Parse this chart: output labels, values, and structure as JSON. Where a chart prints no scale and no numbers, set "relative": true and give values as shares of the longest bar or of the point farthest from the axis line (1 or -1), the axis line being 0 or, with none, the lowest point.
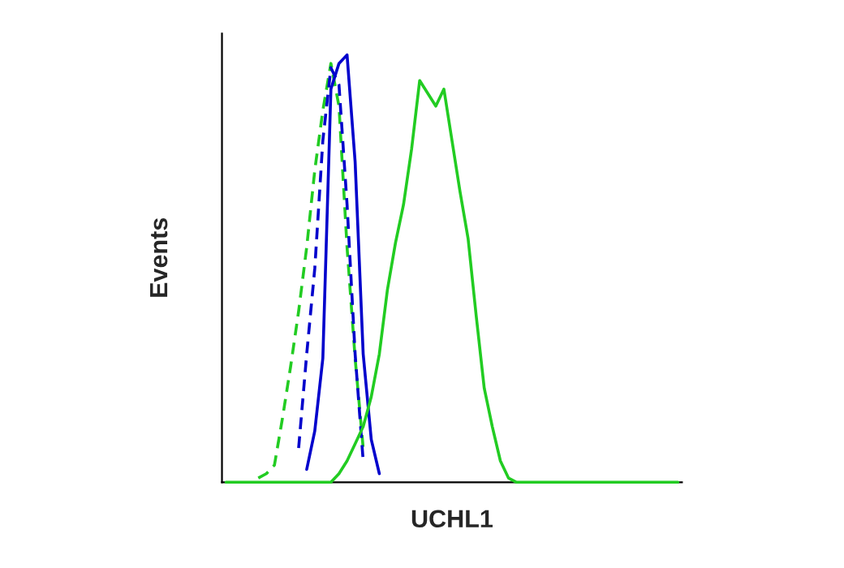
{
  "chart_data": {
    "type": "line",
    "relative": true,
    "xlabel": "UCHL1",
    "ylabel": "Events",
    "tick_labels": false,
    "categories": [
      null,
      null,
      null,
      null,
      null,
      null,
      null,
      null,
      null,
      null,
      null,
      null,
      null,
      null,
      null,
      null,
      null,
      null,
      null,
      null,
      null,
      null,
      null,
      null,
      null,
      null,
      null,
      null,
      null,
      null,
      null,
      null,
      null,
      null,
      null,
      null,
      null,
      null,
      null,
      null,
      null,
      null,
      null,
      null,
      null,
      null,
      null,
      null,
      null,
      null,
      null,
      null,
      null,
      null,
      null,
      null,
      null
    ],
    "series": [
      {
        "color": "#22cc22",
        "line_style": "dashed",
        "values": [
          null,
          null,
          null,
          null,
          0.01,
          0.02,
          0.04,
          0.15,
          0.27,
          0.4,
          0.55,
          0.73,
          0.87,
          0.98,
          0.88,
          0.55,
          0.29,
          0.08,
          null,
          null,
          null,
          null,
          null,
          null,
          null,
          null,
          null,
          null,
          null,
          null,
          null,
          null,
          null,
          null,
          null,
          null,
          null,
          null,
          null,
          null,
          null,
          null,
          null,
          null,
          null,
          null,
          null,
          null,
          null,
          null,
          null,
          null,
          null,
          null,
          null,
          null,
          null
        ]
      },
      {
        "color": "#0000cc",
        "line_style": "dashed",
        "values": [
          null,
          null,
          null,
          null,
          null,
          null,
          null,
          null,
          null,
          0.08,
          0.3,
          0.5,
          0.8,
          0.97,
          0.93,
          0.65,
          0.3,
          0.05,
          null,
          null,
          null,
          null,
          null,
          null,
          null,
          null,
          null,
          null,
          null,
          null,
          null,
          null,
          null,
          null,
          null,
          null,
          null,
          null,
          null,
          null,
          null,
          null,
          null,
          null,
          null,
          null,
          null,
          null,
          null,
          null,
          null,
          null,
          null,
          null,
          null,
          null,
          null
        ]
      },
      {
        "color": "#0000cc",
        "line_style": "solid",
        "values": [
          null,
          null,
          null,
          null,
          null,
          null,
          null,
          null,
          null,
          null,
          0.03,
          0.12,
          0.29,
          0.92,
          0.98,
          1,
          0.75,
          0.3,
          0.1,
          0.02,
          null,
          null,
          null,
          null,
          null,
          null,
          null,
          null,
          null,
          null,
          null,
          null,
          null,
          null,
          null,
          null,
          null,
          null,
          null,
          null,
          null,
          null,
          null,
          null,
          null,
          null,
          null,
          null,
          null,
          null,
          null,
          null,
          null,
          null,
          null,
          null,
          null
        ]
      },
      {
        "color": "#22cc22",
        "line_style": "solid",
        "values": [
          0,
          0,
          0,
          0,
          0,
          0,
          0,
          0,
          0,
          0,
          0,
          0,
          0,
          0,
          0.02,
          0.05,
          0.09,
          0.13,
          0.2,
          0.3,
          0.45,
          0.56,
          0.65,
          0.78,
          0.94,
          0.91,
          0.88,
          0.92,
          0.8,
          0.68,
          0.57,
          0.39,
          0.22,
          0.13,
          0.05,
          0.01,
          0,
          0,
          0,
          0,
          0,
          0,
          0,
          0,
          0,
          0,
          0,
          0,
          0,
          0,
          0,
          0,
          0,
          0,
          0,
          0,
          0
        ]
      }
    ]
  }
}
